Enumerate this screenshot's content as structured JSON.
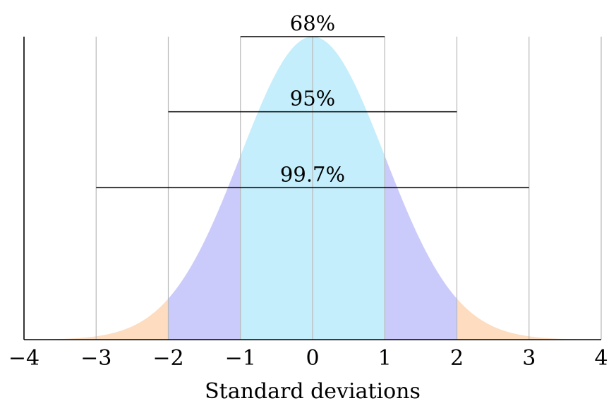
{
  "chart_data": {
    "type": "area",
    "title": "",
    "xlabel": "Standard deviations",
    "ylabel": "",
    "xlim": [
      -4,
      4
    ],
    "ylim": [
      0,
      0.3989
    ],
    "grid": true,
    "xticks": [
      -4,
      -3,
      -2,
      -1,
      0,
      1,
      2,
      3,
      4
    ],
    "xtick_labels": [
      "−4",
      "−3",
      "−2",
      "−1",
      "0",
      "1",
      "2",
      "3",
      "4"
    ],
    "curve": {
      "function": "standard normal density",
      "mean": 0,
      "sd": 1
    },
    "regions": [
      {
        "from": -4,
        "to": -2,
        "color": "#fddcbf"
      },
      {
        "from": -2,
        "to": -1,
        "color": "#cbcbfb"
      },
      {
        "from": -1,
        "to": 1,
        "color": "#c4eefb"
      },
      {
        "from": 1,
        "to": 2,
        "color": "#cbcbfb"
      },
      {
        "from": 2,
        "to": 4,
        "color": "#fddcbf"
      }
    ],
    "brackets": [
      {
        "label": "68%",
        "from": -1,
        "to": 1,
        "y": 0.3989
      },
      {
        "label": "95%",
        "from": -2,
        "to": 2,
        "y": 0.3
      },
      {
        "label": "99.7%",
        "from": -3,
        "to": 3,
        "y": 0.2
      }
    ],
    "gridline_color": "#b8b8b8"
  }
}
